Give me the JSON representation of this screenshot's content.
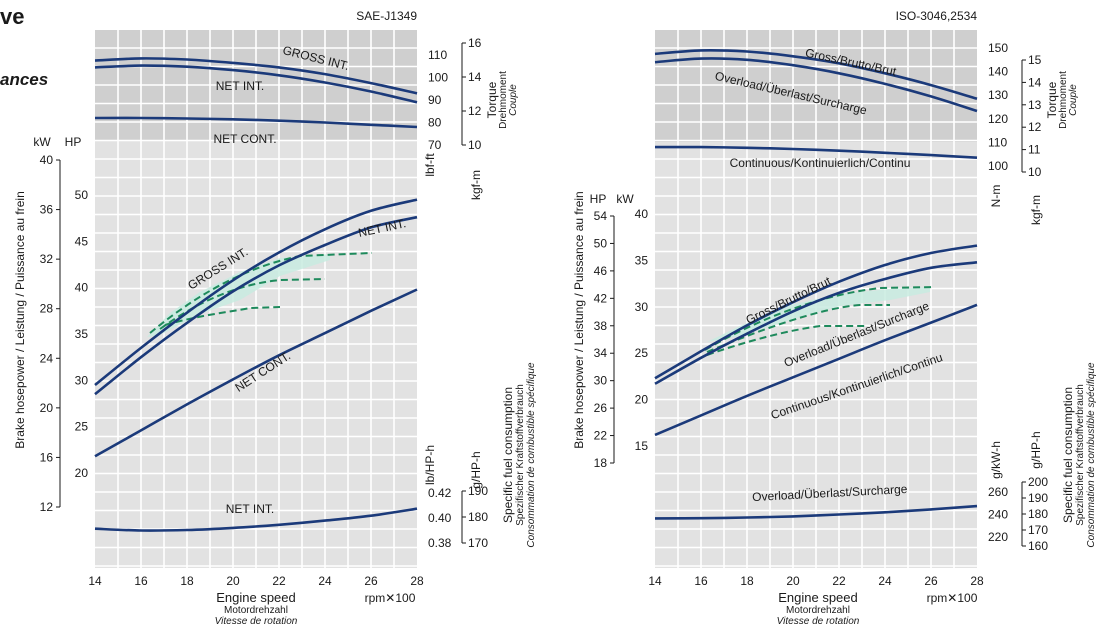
{
  "page": {
    "title_fragment": "ve",
    "subtitle_fragment": "ances"
  },
  "colors": {
    "curve": "#1b3a7a",
    "dashed": "#1e8a5c",
    "grid": "#ffffff",
    "panel": "#e2e2e2",
    "panel_top": "#cfcfcf"
  },
  "chart_data": [
    {
      "type": "line",
      "standard": "SAE-J1349",
      "x_ticks": [
        "14",
        "16",
        "18",
        "20",
        "22",
        "24",
        "26",
        "28"
      ],
      "xlim": [
        14,
        28
      ],
      "xlabel": [
        "Engine speed",
        "Motordrehzahl",
        "Vitesse de rotation"
      ],
      "x_unit": "rpm✕100",
      "torque_axis": {
        "lbfft_ticks": [
          "70",
          "80",
          "90",
          "100",
          "110"
        ],
        "kgfm_ticks": [
          "10",
          "12",
          "14",
          "16"
        ],
        "unit_lbfft": "lbf-ft",
        "unit_kgfm": "kgf-m",
        "label": [
          "Torque",
          "Drehmoment",
          "Couple"
        ]
      },
      "power_axis": {
        "kw_ticks": [
          "12",
          "16",
          "20",
          "24",
          "28",
          "32",
          "36",
          "40"
        ],
        "hp_ticks": [
          "20",
          "25",
          "30",
          "35",
          "40",
          "45",
          "50"
        ],
        "unit_kw": "kW",
        "unit_hp": "HP",
        "label": "Brake hosepower / Leistung / Puissance au frein"
      },
      "fuel_axis": {
        "lb_ticks": [
          "0.38",
          "0.40",
          "0.42"
        ],
        "g_ticks": [
          "170",
          "180",
          "190"
        ],
        "unit_lb": "lb/HP-h",
        "unit_g": "g/HP-h",
        "label": [
          "Specific fuel consumption",
          "Spezifischer Kraftstoffverbrauch",
          "Consommation de combustible spécifique"
        ]
      },
      "series": [
        {
          "name": "GROSS INT.",
          "group": "torque",
          "unit": "lbf-ft",
          "x": [
            14,
            16,
            18,
            20,
            22,
            24,
            26,
            28
          ],
          "y": [
            107.5,
            108.5,
            108,
            106.5,
            104.5,
            101.5,
            97.5,
            93
          ]
        },
        {
          "name": "NET INT.",
          "group": "torque",
          "unit": "lbf-ft",
          "x": [
            14,
            16,
            18,
            20,
            22,
            24,
            26,
            28
          ],
          "y": [
            104.5,
            105.3,
            104.8,
            103.3,
            101,
            97.8,
            93.8,
            89
          ]
        },
        {
          "name": "NET CONT.",
          "group": "torque",
          "unit": "lbf-ft",
          "x": [
            14,
            16,
            18,
            20,
            22,
            24,
            26,
            28
          ],
          "y": [
            82,
            82,
            81.8,
            81.4,
            80.8,
            80,
            79,
            78
          ]
        },
        {
          "name": "GROSS INT.",
          "group": "power",
          "unit": "HP",
          "x": [
            14,
            16,
            18,
            20,
            22,
            24,
            26,
            28
          ],
          "y": [
            29.5,
            33.5,
            37.3,
            40.8,
            43.8,
            46.3,
            48.3,
            49.5
          ]
        },
        {
          "name": "NET INT.",
          "group": "power",
          "unit": "HP",
          "x": [
            14,
            16,
            18,
            20,
            22,
            24,
            26,
            28
          ],
          "y": [
            28.5,
            32.5,
            36.2,
            39.6,
            42.4,
            44.6,
            46.5,
            47.6
          ]
        },
        {
          "name": "NET CONT.",
          "group": "power",
          "unit": "HP",
          "x": [
            14,
            16,
            18,
            20,
            22,
            24,
            26,
            28
          ],
          "y": [
            21.8,
            24.6,
            27.4,
            30.1,
            32.7,
            35.1,
            37.5,
            39.8
          ]
        },
        {
          "name": "NET INT.",
          "group": "fuel",
          "unit": "g/HP-h",
          "x": [
            14,
            16,
            18,
            20,
            22,
            24,
            26,
            28
          ],
          "y": [
            175.5,
            174.8,
            175,
            175.8,
            177,
            178.6,
            180.5,
            183.2
          ]
        }
      ]
    },
    {
      "type": "line",
      "standard": "ISO-3046,2534",
      "x_ticks": [
        "14",
        "16",
        "18",
        "20",
        "22",
        "24",
        "26",
        "28"
      ],
      "xlim": [
        14,
        28
      ],
      "xlabel": [
        "Engine speed",
        "Motordrehzahl",
        "Vitesse de rotation"
      ],
      "x_unit": "rpm✕100",
      "torque_axis": {
        "nm_ticks": [
          "100",
          "110",
          "120",
          "130",
          "140",
          "150"
        ],
        "kgfm_ticks": [
          "10",
          "11",
          "12",
          "13",
          "14",
          "15"
        ],
        "unit_nm": "N-m",
        "unit_kgfm": "kgf-m",
        "label": [
          "Torque",
          "Drehmoment",
          "Couple"
        ]
      },
      "power_axis": {
        "hp_ticks": [
          "18",
          "22",
          "26",
          "30",
          "34",
          "38",
          "42",
          "46",
          "50",
          "54"
        ],
        "kw_ticks": [
          "15",
          "20",
          "25",
          "30",
          "35",
          "40"
        ],
        "unit_kw": "kW",
        "unit_hp": "HP",
        "label": "Brake hosepower / Leistung / Puissance au frein"
      },
      "fuel_axis": {
        "gkwh_ticks": [
          "220",
          "240",
          "260"
        ],
        "ghph_ticks": [
          "160",
          "170",
          "180",
          "190",
          "200"
        ],
        "unit_gkwh": "g/kW-h",
        "unit_ghph": "g/HP-h",
        "label": [
          "Specific fuel consumption",
          "Spezifischer Kraftstoffverbrauch",
          "Consommation de combustible spécifique"
        ]
      },
      "series": [
        {
          "name": "Gross/Brutto/Brut",
          "group": "torque",
          "unit": "N-m",
          "x": [
            14,
            16,
            18,
            20,
            22,
            24,
            26,
            28
          ],
          "y": [
            147.5,
            149,
            148.5,
            146.5,
            143.5,
            139.3,
            134.3,
            128.5
          ]
        },
        {
          "name": "Overload/Überlast/Surcharge",
          "group": "torque",
          "unit": "N-m",
          "x": [
            14,
            16,
            18,
            20,
            22,
            24,
            26,
            28
          ],
          "y": [
            144,
            145.5,
            145,
            142.7,
            139.3,
            134.8,
            129.5,
            123.3
          ]
        },
        {
          "name": "Continuous/Kontinuierlich/Continu",
          "group": "torque",
          "unit": "N-m",
          "x": [
            14,
            16,
            18,
            20,
            22,
            24,
            26,
            28
          ],
          "y": [
            108,
            108,
            107.7,
            107.2,
            106.5,
            105.6,
            104.6,
            103.5
          ]
        },
        {
          "name": "Gross/Brutto/Brut",
          "group": "power",
          "unit": "kW",
          "x": [
            14,
            16,
            18,
            20,
            22,
            24,
            26,
            28
          ],
          "y": [
            22.3,
            25.2,
            28,
            30.5,
            32.7,
            34.5,
            35.8,
            36.6
          ]
        },
        {
          "name": "Overload/Überlast/Surcharge",
          "group": "power",
          "unit": "kW",
          "x": [
            14,
            16,
            18,
            20,
            22,
            24,
            26,
            28
          ],
          "y": [
            21.7,
            24.5,
            27.1,
            29.5,
            31.5,
            33,
            34.2,
            34.8
          ]
        },
        {
          "name": "Continuous/Kontinuierlich/Continu",
          "group": "power",
          "unit": "kW",
          "x": [
            14,
            16,
            18,
            20,
            22,
            24,
            26,
            28
          ],
          "y": [
            16.2,
            18.3,
            20.4,
            22.4,
            24.4,
            26.4,
            28.3,
            30.2
          ]
        },
        {
          "name": "Overload/Überlast/Surcharge",
          "group": "fuel",
          "unit": "g/kW-h",
          "x": [
            14,
            16,
            18,
            20,
            22,
            24,
            26,
            28
          ],
          "y": [
            236.5,
            236.7,
            237.3,
            238.3,
            240,
            242,
            244.5,
            247.5
          ]
        }
      ]
    }
  ]
}
